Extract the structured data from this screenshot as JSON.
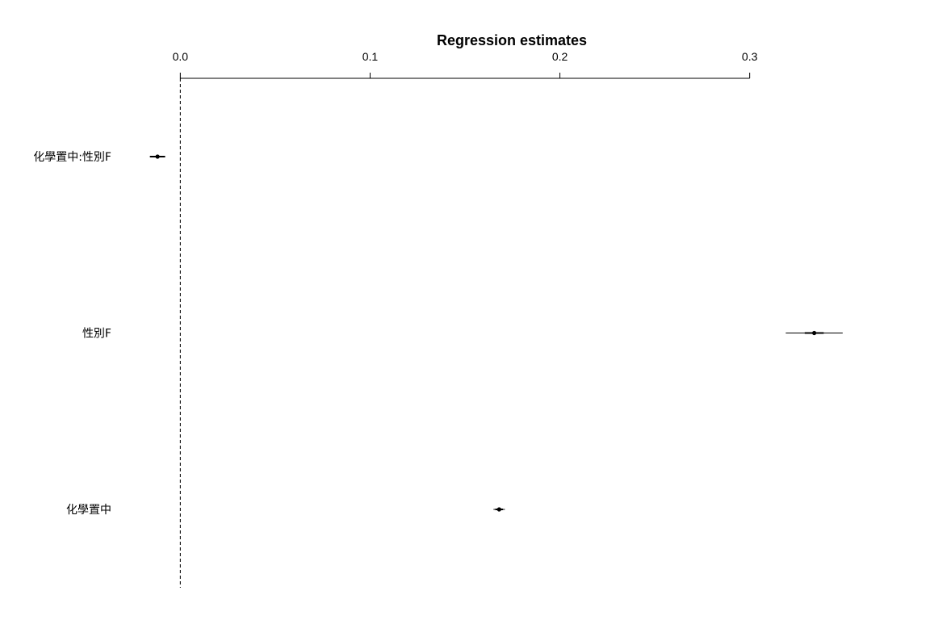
{
  "chart_data": {
    "type": "coefficient-plot",
    "title": "Regression estimates",
    "x_axis_position": "top",
    "xlim": [
      -0.095,
      0.395
    ],
    "ticks": [
      {
        "value": 0.0,
        "label": "0.0"
      },
      {
        "value": 0.1,
        "label": "0.1"
      },
      {
        "value": 0.2,
        "label": "0.2"
      },
      {
        "value": 0.3,
        "label": "0.3"
      }
    ],
    "reference_line": 0,
    "grid": false,
    "rows": [
      {
        "label": "化學置中:性別F",
        "estimate": -0.012,
        "inner": [
          -0.016,
          -0.008
        ],
        "outer": [
          -0.016,
          -0.008
        ]
      },
      {
        "label": "性別F",
        "estimate": 0.334,
        "inner": [
          0.329,
          0.339
        ],
        "outer": [
          0.319,
          0.349
        ]
      },
      {
        "label": "化學置中",
        "estimate": 0.168,
        "inner": [
          0.166,
          0.17
        ],
        "outer": [
          0.165,
          0.171
        ]
      }
    ]
  }
}
